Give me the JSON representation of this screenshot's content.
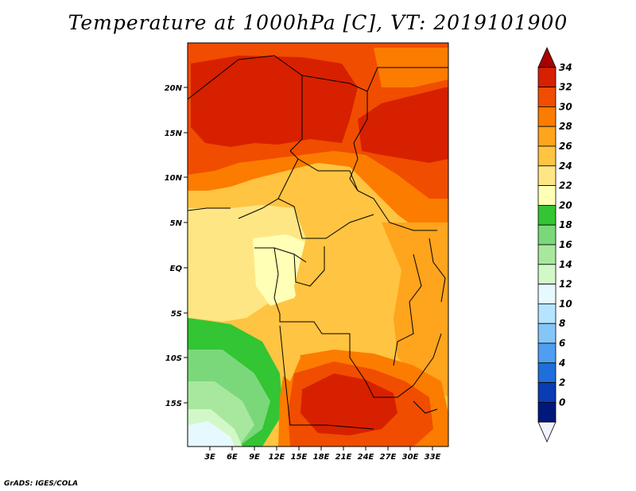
{
  "title": "Temperature at 1000hPa [C], VT: 2019101900",
  "credit": "GrADS: IGES/COLA",
  "lat_labels": [
    "20N",
    "15N",
    "10N",
    "5N",
    "EQ",
    "5S",
    "10S",
    "15S"
  ],
  "lon_labels": [
    "3E",
    "6E",
    "9E",
    "12E",
    "15E",
    "18E",
    "21E",
    "24E",
    "27E",
    "30E",
    "33E"
  ],
  "colorbar": {
    "labels": [
      "34",
      "32",
      "30",
      "28",
      "26",
      "24",
      "22",
      "20",
      "18",
      "16",
      "14",
      "12",
      "10",
      "8",
      "6",
      "4",
      "2",
      "0"
    ],
    "colors": [
      "#aa0000",
      "#d72000",
      "#f04d00",
      "#fc7c00",
      "#ffa41d",
      "#ffc441",
      "#ffe685",
      "#ffffb5",
      "#33c533",
      "#7ad87a",
      "#a8e89e",
      "#d2f8c8",
      "#e6f9ff",
      "#b4e4ff",
      "#84c6f8",
      "#4e9ef2",
      "#1e6edc",
      "#0a3cb4",
      "#00187c",
      "#f2f2ff"
    ]
  },
  "colors": {
    "hot_red": "#d72000",
    "red_orange": "#f04d00",
    "orange": "#fc7c00",
    "light_orange": "#ffa41d",
    "gold": "#ffc441",
    "yellow": "#ffe685",
    "pale_yellow": "#ffffb5",
    "green": "#33c533",
    "light_green": "#7ad87a",
    "pale_green": "#a8e89e",
    "mint": "#d2f8c8",
    "ice": "#e6f9ff"
  }
}
